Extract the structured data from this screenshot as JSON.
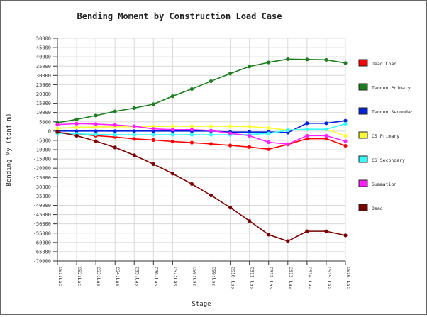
{
  "chart_data": {
    "type": "line",
    "title": "Bending Moment by Construction Load Case",
    "xlabel": "Stage",
    "ylabel": "Bending My (tonf m)",
    "ylim": [
      -70000,
      50000
    ],
    "ytick_step": 5000,
    "grid": true,
    "legend_placement": "right",
    "categories": [
      "CS1:Las",
      "CS2:Las",
      "CS3:Las",
      "CS4:Las",
      "CS5:Las",
      "CS6:Las",
      "CS7:Las",
      "CS8:Las",
      "CS9:Las",
      "CS10:Las",
      "CS11:Las",
      "CS12:Las",
      "CS13:Las",
      "CS14:Las",
      "CS15:Las",
      "CS16:Las"
    ],
    "series": [
      {
        "name": "Dead Load",
        "color": "#ff0000",
        "values": [
          -800,
          -1500,
          -2500,
          -3200,
          -4200,
          -4800,
          -5600,
          -6200,
          -6900,
          -7700,
          -8600,
          -9700,
          -7200,
          -4100,
          -4100,
          -7900
        ]
      },
      {
        "name": "Tendon Primary",
        "color": "#1e7d1e",
        "values": [
          4500,
          6300,
          8400,
          10600,
          12400,
          14500,
          18800,
          22700,
          26900,
          31000,
          34800,
          37000,
          38800,
          38600,
          38400,
          36700
        ]
      },
      {
        "name": "Tendon Seconda:",
        "color": "#0022dd",
        "values": [
          0,
          0,
          0,
          0,
          0,
          0,
          0,
          0,
          0,
          -500,
          -500,
          -500,
          -800,
          4200,
          4200,
          5600
        ]
      },
      {
        "name": "CS Primary",
        "color": "#ffff33",
        "values": [
          1500,
          2000,
          2200,
          2300,
          2400,
          2500,
          2600,
          2600,
          2600,
          2600,
          2400,
          1700,
          600,
          900,
          900,
          -2500
        ]
      },
      {
        "name": "CS Secondary",
        "color": "#33ffff",
        "values": [
          -1200,
          -1500,
          -1800,
          -2000,
          -2000,
          -2000,
          -2000,
          -2000,
          -2000,
          -2000,
          -1800,
          -1300,
          500,
          1000,
          1000,
          3900
        ]
      },
      {
        "name": "Summation",
        "color": "#ff22ff",
        "values": [
          3500,
          4000,
          3800,
          3300,
          2600,
          1200,
          800,
          800,
          300,
          -1200,
          -2500,
          -6000,
          -7000,
          -2500,
          -2500,
          -5400
        ]
      },
      {
        "name": "Dead",
        "color": "#7a0000",
        "values": [
          -500,
          -2500,
          -5400,
          -8800,
          -13000,
          -17800,
          -22900,
          -28500,
          -34600,
          -41200,
          -48400,
          -55800,
          -59300,
          -54000,
          -54000,
          -56200
        ]
      }
    ]
  }
}
